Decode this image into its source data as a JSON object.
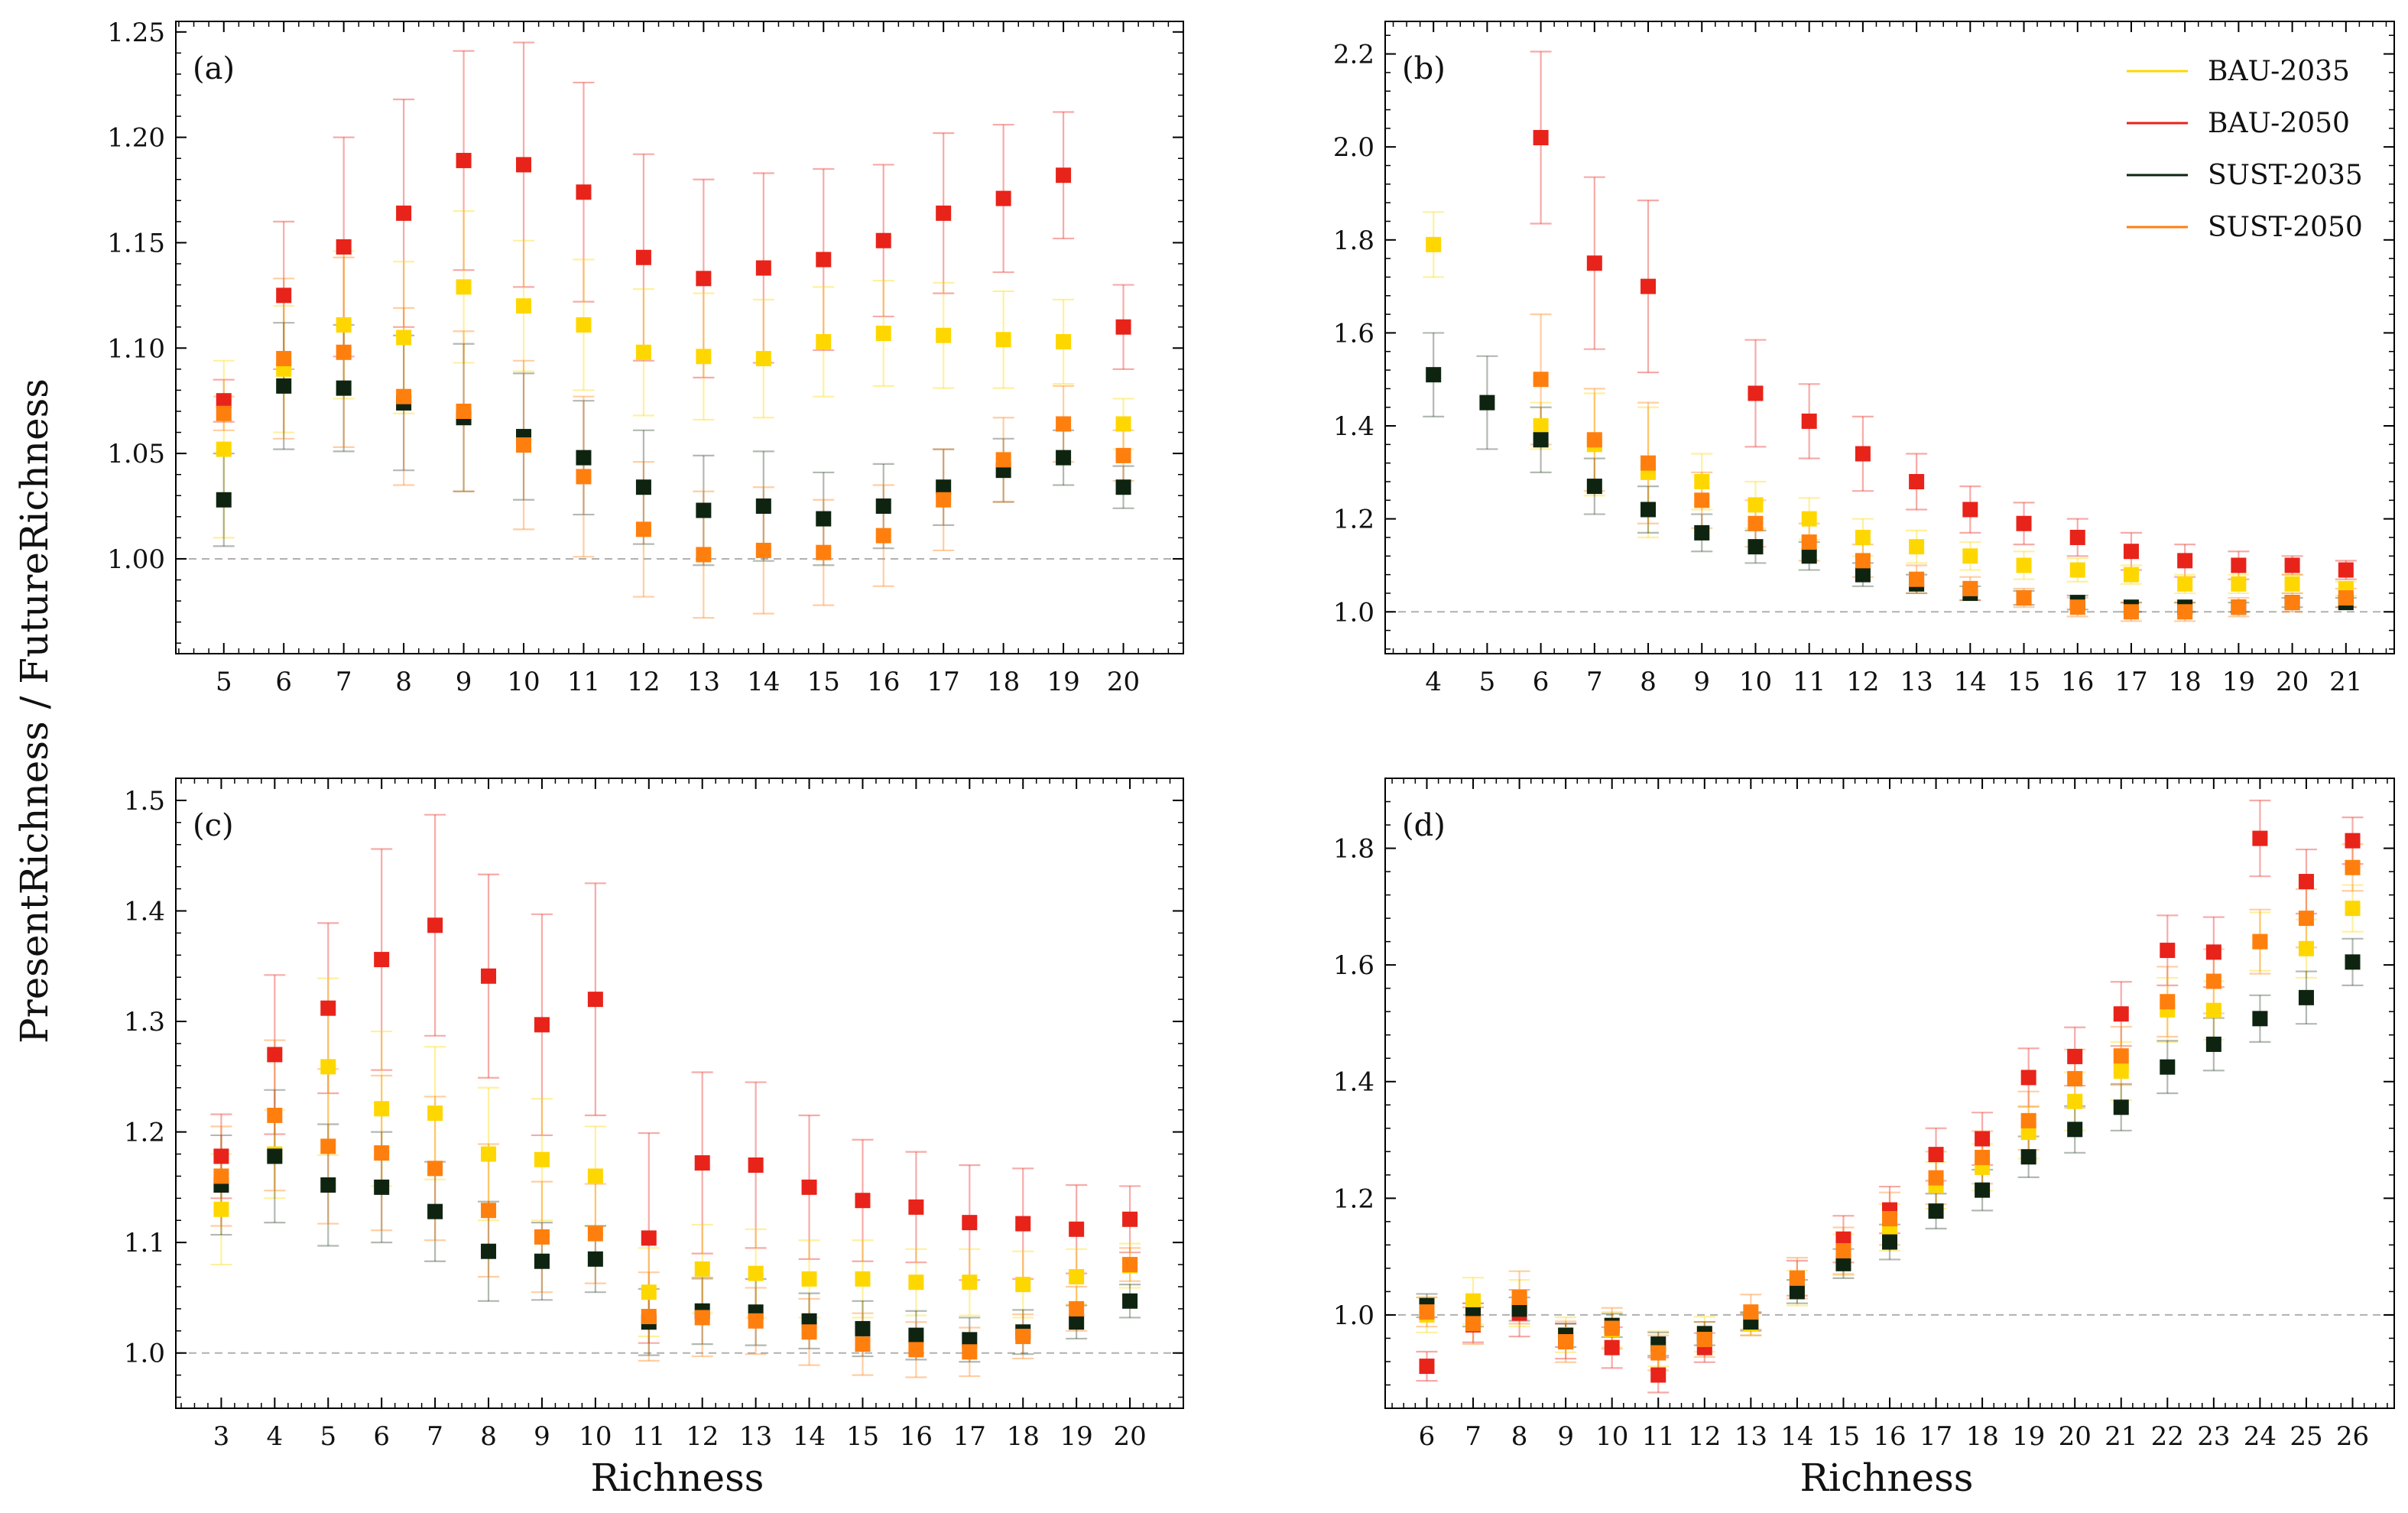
{
  "figure": {
    "ylabel": "PresentRichness / FutureRichness",
    "xlabel": "Richness"
  },
  "series_info": [
    {
      "key": "bau35",
      "name": "BAU-2035",
      "color": "#ffd700"
    },
    {
      "key": "bau50",
      "name": "BAU-2050",
      "color": "#e8231a"
    },
    {
      "key": "sust35",
      "name": "SUST-2035",
      "color": "#0e2410"
    },
    {
      "key": "sust50",
      "name": "SUST-2050",
      "color": "#ff7f0e"
    }
  ],
  "chart_data": [
    {
      "type": "scatter",
      "panel": "(a)",
      "x": [
        5,
        6,
        7,
        8,
        9,
        10,
        11,
        12,
        13,
        14,
        15,
        16,
        17,
        18,
        19,
        20
      ],
      "xlim": [
        4.2,
        21.0
      ],
      "ylim": [
        0.955,
        1.255
      ],
      "yticks": [
        1.0,
        1.05,
        1.1,
        1.15,
        1.2,
        1.25
      ],
      "ytick_labels": [
        "1.00",
        "1.05",
        "1.10",
        "1.15",
        "1.20",
        "1.25"
      ],
      "reference_line": 1.0,
      "series": [
        {
          "name": "BAU-2050",
          "values": [
            1.075,
            1.125,
            1.148,
            1.164,
            1.189,
            1.187,
            1.174,
            1.143,
            1.133,
            1.138,
            1.142,
            1.151,
            1.164,
            1.171,
            1.182,
            1.11
          ],
          "err": [
            0.01,
            0.035,
            0.052,
            0.054,
            0.052,
            0.058,
            0.052,
            0.049,
            0.047,
            0.045,
            0.043,
            0.036,
            0.038,
            0.035,
            0.03,
            0.02
          ]
        },
        {
          "name": "BAU-2035",
          "values": [
            1.052,
            1.09,
            1.111,
            1.105,
            1.129,
            1.12,
            1.111,
            1.098,
            1.096,
            1.095,
            1.103,
            1.107,
            1.106,
            1.104,
            1.103,
            1.064
          ],
          "err": [
            0.042,
            0.03,
            0.035,
            0.036,
            0.036,
            0.031,
            0.031,
            0.03,
            0.03,
            0.028,
            0.026,
            0.025,
            0.025,
            0.023,
            0.02,
            0.012
          ]
        },
        {
          "name": "SUST-2035",
          "values": [
            1.028,
            1.082,
            1.081,
            1.074,
            1.067,
            1.058,
            1.048,
            1.034,
            1.023,
            1.025,
            1.019,
            1.025,
            1.034,
            1.042,
            1.048,
            1.034
          ],
          "err": [
            0.022,
            0.03,
            0.03,
            0.032,
            0.035,
            0.03,
            0.027,
            0.027,
            0.026,
            0.026,
            0.022,
            0.02,
            0.018,
            0.015,
            0.013,
            0.01
          ]
        },
        {
          "name": "SUST-2050",
          "values": [
            1.069,
            1.095,
            1.098,
            1.077,
            1.07,
            1.054,
            1.039,
            1.014,
            1.002,
            1.004,
            1.003,
            1.011,
            1.028,
            1.047,
            1.064,
            1.049
          ],
          "err": [
            0.008,
            0.038,
            0.045,
            0.042,
            0.038,
            0.04,
            0.038,
            0.032,
            0.03,
            0.03,
            0.025,
            0.024,
            0.024,
            0.02,
            0.018,
            0.012
          ]
        }
      ]
    },
    {
      "type": "scatter",
      "panel": "(b)",
      "x": [
        4,
        5,
        6,
        7,
        8,
        9,
        10,
        11,
        12,
        13,
        14,
        15,
        16,
        17,
        18,
        19,
        20,
        21
      ],
      "xlim": [
        3.1,
        21.9
      ],
      "ylim": [
        0.91,
        2.27
      ],
      "yticks": [
        1.0,
        1.2,
        1.4,
        1.6,
        1.8,
        2.0,
        2.2
      ],
      "ytick_labels": [
        "1.0",
        "1.2",
        "1.4",
        "1.6",
        "1.8",
        "2.0",
        "2.2"
      ],
      "reference_line": 1.0,
      "legend": "top-right",
      "series": [
        {
          "name": "BAU-2050",
          "values": [
            null,
            null,
            2.02,
            1.75,
            1.7,
            null,
            1.47,
            1.41,
            1.34,
            1.28,
            1.22,
            1.19,
            1.16,
            1.13,
            1.11,
            1.1,
            1.1,
            1.09
          ],
          "err": [
            0,
            0,
            0.185,
            0.185,
            0.185,
            0,
            0.115,
            0.08,
            0.08,
            0.06,
            0.05,
            0.045,
            0.04,
            0.04,
            0.035,
            0.03,
            0.02,
            0.02
          ]
        },
        {
          "name": "BAU-2035",
          "values": [
            1.79,
            null,
            1.4,
            1.36,
            1.3,
            1.28,
            1.23,
            1.2,
            1.16,
            1.14,
            1.12,
            1.1,
            1.09,
            1.08,
            1.06,
            1.06,
            1.06,
            1.05
          ],
          "err": [
            0.07,
            0,
            0.05,
            0.11,
            0.14,
            0.06,
            0.05,
            0.045,
            0.04,
            0.035,
            0.03,
            0.03,
            0.025,
            0.02,
            0.02,
            0.02,
            0.02,
            0.015
          ]
        },
        {
          "name": "SUST-2035",
          "values": [
            1.51,
            1.45,
            1.37,
            1.27,
            1.22,
            1.17,
            1.14,
            1.12,
            1.08,
            1.06,
            1.04,
            1.03,
            1.02,
            1.01,
            1.01,
            1.01,
            1.02,
            1.02
          ],
          "err": [
            0.09,
            0.1,
            0.07,
            0.06,
            0.05,
            0.04,
            0.035,
            0.03,
            0.025,
            0.02,
            0.015,
            0.015,
            0.015,
            0.01,
            0.01,
            0.01,
            0.01,
            0.01
          ]
        },
        {
          "name": "SUST-2050",
          "values": [
            null,
            null,
            1.5,
            1.37,
            1.32,
            1.24,
            1.19,
            1.15,
            1.11,
            1.07,
            1.05,
            1.03,
            1.01,
            1.0,
            1.0,
            1.01,
            1.02,
            1.03
          ],
          "err": [
            0,
            0,
            0.14,
            0.11,
            0.13,
            0.06,
            0.05,
            0.04,
            0.035,
            0.03,
            0.025,
            0.02,
            0.02,
            0.02,
            0.02,
            0.02,
            0.02,
            0.02
          ]
        }
      ]
    },
    {
      "type": "scatter",
      "panel": "(c)",
      "x": [
        3,
        4,
        5,
        6,
        7,
        8,
        9,
        10,
        11,
        12,
        13,
        14,
        15,
        16,
        17,
        18,
        19,
        20
      ],
      "xlim": [
        2.15,
        21.0
      ],
      "ylim": [
        0.95,
        1.52
      ],
      "yticks": [
        1.0,
        1.1,
        1.2,
        1.3,
        1.4,
        1.5
      ],
      "ytick_labels": [
        "1.0",
        "1.1",
        "1.2",
        "1.3",
        "1.4",
        "1.5"
      ],
      "reference_line": 1.0,
      "series": [
        {
          "name": "BAU-2050",
          "values": [
            1.178,
            1.27,
            1.312,
            1.356,
            1.387,
            1.341,
            1.297,
            1.32,
            1.104,
            1.172,
            1.17,
            1.15,
            1.138,
            1.132,
            1.118,
            1.117,
            1.112,
            1.121
          ],
          "err": [
            0.038,
            0.072,
            0.077,
            0.1,
            0.1,
            0.092,
            0.1,
            0.105,
            0.095,
            0.082,
            0.075,
            0.065,
            0.055,
            0.05,
            0.052,
            0.05,
            0.04,
            0.03
          ]
        },
        {
          "name": "BAU-2035",
          "values": [
            1.13,
            1.18,
            1.259,
            1.221,
            1.217,
            1.18,
            1.175,
            1.16,
            1.055,
            1.076,
            1.072,
            1.067,
            1.067,
            1.064,
            1.064,
            1.062,
            1.069,
            1.079
          ],
          "err": [
            0.05,
            0.04,
            0.08,
            0.07,
            0.06,
            0.06,
            0.055,
            0.045,
            0.04,
            0.04,
            0.04,
            0.035,
            0.035,
            0.03,
            0.03,
            0.03,
            0.025,
            0.02
          ]
        },
        {
          "name": "SUST-2035",
          "values": [
            1.152,
            1.178,
            1.152,
            1.15,
            1.128,
            1.092,
            1.083,
            1.085,
            1.028,
            1.038,
            1.037,
            1.029,
            1.022,
            1.016,
            1.012,
            1.019,
            1.028,
            1.047
          ],
          "err": [
            0.045,
            0.06,
            0.055,
            0.05,
            0.045,
            0.045,
            0.035,
            0.03,
            0.03,
            0.03,
            0.03,
            0.025,
            0.025,
            0.022,
            0.02,
            0.02,
            0.015,
            0.015
          ]
        },
        {
          "name": "SUST-2050",
          "values": [
            1.16,
            1.215,
            1.187,
            1.181,
            1.167,
            1.129,
            1.105,
            1.108,
            1.033,
            1.032,
            1.029,
            1.019,
            1.008,
            1.003,
            1.001,
            1.015,
            1.04,
            1.08
          ],
          "err": [
            0.045,
            0.068,
            0.07,
            0.07,
            0.065,
            0.06,
            0.05,
            0.045,
            0.04,
            0.035,
            0.03,
            0.03,
            0.028,
            0.025,
            0.022,
            0.02,
            0.02,
            0.015
          ]
        }
      ]
    },
    {
      "type": "scatter",
      "panel": "(d)",
      "x": [
        6,
        7,
        8,
        9,
        10,
        11,
        12,
        13,
        14,
        15,
        16,
        17,
        18,
        19,
        20,
        21,
        22,
        23,
        24,
        25,
        26
      ],
      "xlim": [
        5.1,
        26.9
      ],
      "ylim": [
        0.84,
        1.92
      ],
      "yticks": [
        1.0,
        1.2,
        1.4,
        1.6,
        1.8
      ],
      "ytick_labels": [
        "1.0",
        "1.2",
        "1.4",
        "1.6",
        "1.8"
      ],
      "reference_line": 1.0,
      "series": [
        {
          "name": "BAU-2050",
          "values": [
            0.912,
            0.983,
            1.003,
            0.955,
            0.944,
            0.897,
            0.944,
            0.985,
            1.063,
            1.13,
            1.18,
            1.275,
            1.302,
            1.407,
            1.443,
            1.516,
            1.625,
            1.622,
            1.817,
            1.743,
            1.813
          ],
          "err": [
            0.025,
            0.03,
            0.04,
            0.03,
            0.035,
            0.03,
            0.025,
            0.02,
            0.03,
            0.04,
            0.04,
            0.045,
            0.045,
            0.05,
            0.05,
            0.055,
            0.06,
            0.06,
            0.065,
            0.055,
            0.04
          ]
        },
        {
          "name": "BAU-2035",
          "values": [
            1.0,
            1.024,
            1.02,
            0.966,
            0.975,
            0.942,
            0.967,
            0.985,
            1.046,
            1.103,
            1.15,
            1.222,
            1.253,
            1.313,
            1.366,
            1.418,
            1.523,
            1.522,
            1.64,
            1.628,
            1.697
          ],
          "err": [
            0.03,
            0.04,
            0.04,
            0.03,
            0.03,
            0.03,
            0.03,
            0.02,
            0.03,
            0.035,
            0.04,
            0.04,
            0.04,
            0.045,
            0.05,
            0.05,
            0.055,
            0.05,
            0.05,
            0.05,
            0.04
          ]
        },
        {
          "name": "SUST-2035",
          "values": [
            1.016,
            1.0,
            1.01,
            0.965,
            0.982,
            0.95,
            0.968,
            0.988,
            1.04,
            1.088,
            1.125,
            1.178,
            1.214,
            1.271,
            1.318,
            1.356,
            1.425,
            1.464,
            1.508,
            1.544,
            1.605
          ],
          "err": [
            0.02,
            0.02,
            0.02,
            0.02,
            0.02,
            0.02,
            0.02,
            0.015,
            0.02,
            0.025,
            0.03,
            0.03,
            0.035,
            0.035,
            0.04,
            0.04,
            0.045,
            0.045,
            0.04,
            0.045,
            0.04
          ]
        },
        {
          "name": "SUST-2050",
          "values": [
            1.005,
            0.985,
            1.03,
            0.954,
            0.977,
            0.935,
            0.958,
            1.005,
            1.063,
            1.11,
            1.165,
            1.235,
            1.27,
            1.333,
            1.405,
            1.444,
            1.537,
            1.572,
            1.64,
            1.68,
            1.767
          ],
          "err": [
            0.025,
            0.035,
            0.045,
            0.035,
            0.035,
            0.03,
            0.03,
            0.03,
            0.035,
            0.04,
            0.045,
            0.045,
            0.045,
            0.05,
            0.05,
            0.05,
            0.06,
            0.055,
            0.055,
            0.05,
            0.04
          ]
        }
      ]
    }
  ]
}
